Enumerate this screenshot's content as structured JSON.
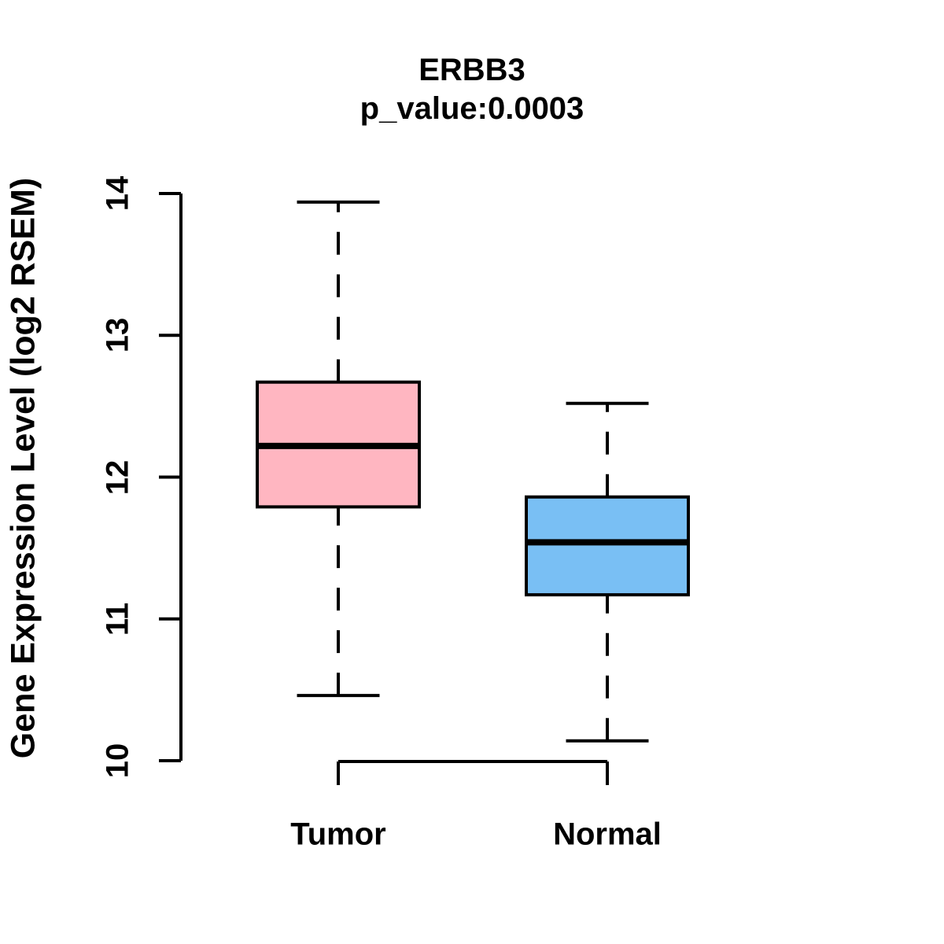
{
  "chart_data": {
    "type": "boxplot",
    "title": "ERBB3",
    "subtitle": "p_value:0.0003",
    "ylabel": "Gene Expression Level (log2 RSEM)",
    "xlabel": "",
    "categories": [
      "Tumor",
      "Normal"
    ],
    "y_ticks": [
      10,
      11,
      12,
      13,
      14
    ],
    "ylim": [
      10,
      14
    ],
    "grid": false,
    "legend_position": "none",
    "whisker_style": "dashed",
    "axis_color": "#000000",
    "series": [
      {
        "name": "Tumor",
        "box_color": "#FFB6C1",
        "border_color": "#000000",
        "min": 10.46,
        "q1": 11.79,
        "median": 12.22,
        "q3": 12.67,
        "max": 13.94
      },
      {
        "name": "Normal",
        "box_color": "#79BFF4",
        "border_color": "#000000",
        "min": 10.14,
        "q1": 11.17,
        "median": 11.54,
        "q3": 11.86,
        "max": 12.52
      }
    ]
  }
}
